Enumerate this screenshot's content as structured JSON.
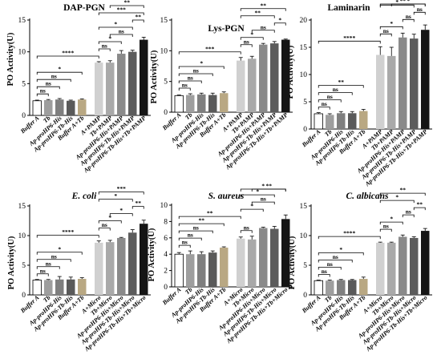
{
  "y_axis_label": "PO Activity(U)",
  "bar_colors": [
    "#ffffff",
    "#9e9e9e",
    "#7f7f7f",
    "#5a5a5a",
    "#b9a883",
    "#d0d0d0",
    "#a9a9a9",
    "#8a8a8a",
    "#5c5c5c",
    "#151515",
    "#b9a883"
  ],
  "chart_data": [
    {
      "type": "bar",
      "title": "DAP-PGN",
      "title_italic": false,
      "ylabel": "PO Activity(U)",
      "ylim": [
        0,
        15
      ],
      "yticks": [
        0,
        5,
        10,
        15
      ],
      "categories": [
        "Buffer A",
        "Tb",
        "Ap-proHP6-His",
        "Ap-proHP6-Tb-His",
        "Buffer A+Tb",
        "A+PAMP",
        "Tb+PAMP",
        "Ap-proHP6-His+PAMP",
        "Ap-proHP6-Tb-His+PAMP",
        "Ap-proHP6-Tb-His+Tb+PAMP"
      ],
      "values": [
        2.3,
        2.4,
        2.5,
        2.3,
        2.5,
        8.3,
        8.3,
        9.7,
        10.0,
        11.9
      ],
      "errors": [
        0.1,
        0.1,
        0.15,
        0.1,
        0.1,
        0.15,
        0.3,
        0.5,
        0.25,
        0.4
      ],
      "brackets": [
        {
          "i": 0,
          "j": 1,
          "label": "ns"
        },
        {
          "i": 0,
          "j": 2,
          "label": "ns"
        },
        {
          "i": 0,
          "j": 3,
          "label": "ns"
        },
        {
          "i": 0,
          "j": 4,
          "label": "*"
        },
        {
          "i": 0,
          "j": 5,
          "label": "****"
        },
        {
          "i": 5,
          "j": 6,
          "label": "ns"
        },
        {
          "i": 5,
          "j": 7,
          "label": "*"
        },
        {
          "i": 6,
          "j": 8,
          "label": "ns"
        },
        {
          "i": 5,
          "j": 8,
          "label": "*"
        },
        {
          "i": 8,
          "j": 9,
          "label": "**"
        },
        {
          "i": 5,
          "j": 9,
          "label": "***"
        },
        {
          "i": 6,
          "j": 9,
          "label": "**"
        }
      ]
    },
    {
      "type": "bar",
      "title": "Lys-PGN",
      "title_italic": false,
      "ylabel": "PO Activity(U)",
      "ylim": [
        0,
        15
      ],
      "yticks": [
        0,
        5,
        10,
        15
      ],
      "categories": [
        "Buffer A",
        "Tb",
        "Ap-proHP6-His",
        "Ap-proHP6-Tb-His",
        "Buffer A+Tb",
        "A+PAMP",
        "Tb+PAMP",
        "Ap-proHP6-His+PAMP",
        "Ap-proHP6-Tb-His+PAMP",
        "Ap-proHP6-Tb-His+Tb+PAMP"
      ],
      "values": [
        2.7,
        2.8,
        2.9,
        2.8,
        3.1,
        8.4,
        8.7,
        11.0,
        11.2,
        11.8
      ],
      "errors": [
        0.1,
        0.2,
        0.2,
        0.3,
        0.2,
        0.5,
        0.4,
        0.2,
        0.3,
        0.1
      ],
      "brackets": [
        {
          "i": 0,
          "j": 1,
          "label": "ns"
        },
        {
          "i": 0,
          "j": 2,
          "label": "ns"
        },
        {
          "i": 0,
          "j": 3,
          "label": "ns"
        },
        {
          "i": 0,
          "j": 4,
          "label": "*"
        },
        {
          "i": 0,
          "j": 5,
          "label": "***"
        },
        {
          "i": 5,
          "j": 6,
          "label": "ns"
        },
        {
          "i": 5,
          "j": 7,
          "label": "*"
        },
        {
          "i": 6,
          "j": 8,
          "label": "ns"
        },
        {
          "i": 8,
          "j": 9,
          "label": "*"
        },
        {
          "i": 5,
          "j": 8,
          "label": "**"
        },
        {
          "i": 5,
          "j": 9,
          "label": "**"
        }
      ]
    },
    {
      "type": "bar",
      "title": "Laminarin",
      "title_italic": false,
      "ylabel": "PO Activity(U)",
      "ylim": [
        0,
        20
      ],
      "yticks": [
        0,
        5,
        10,
        15,
        20
      ],
      "categories": [
        "Buffer A",
        "Tb",
        "Ap-proHP6-His",
        "Ap-proHP6-Tb-His",
        "Buffer A+Tb",
        "A+PAMP",
        "Tb+PAMP",
        "Ap-proHP6-His+PAMP",
        "Ap-proHP6-Tb-His+PAMP",
        "Ap-proHP6-Tb-His+Tb+PAMP"
      ],
      "values": [
        2.8,
        2.6,
        2.9,
        2.9,
        3.3,
        13.6,
        13.4,
        16.8,
        16.6,
        18.2
      ],
      "errors": [
        0.2,
        0.2,
        0.3,
        0.3,
        0.3,
        1.5,
        1.6,
        0.8,
        0.8,
        0.9
      ],
      "brackets": [
        {
          "i": 0,
          "j": 1,
          "label": "ns"
        },
        {
          "i": 0,
          "j": 2,
          "label": "ns"
        },
        {
          "i": 0,
          "j": 3,
          "label": "ns"
        },
        {
          "i": 0,
          "j": 4,
          "label": "**"
        },
        {
          "i": 0,
          "j": 5,
          "label": "****"
        },
        {
          "i": 5,
          "j": 6,
          "label": "ns"
        },
        {
          "i": 5,
          "j": 7,
          "label": "*"
        },
        {
          "i": 7,
          "j": 8,
          "label": "ns"
        },
        {
          "i": 8,
          "j": 9,
          "label": "ns"
        },
        {
          "i": 5,
          "j": 8,
          "label": "*"
        },
        {
          "i": 6,
          "j": 9,
          "label": "*"
        },
        {
          "i": 5,
          "j": 9,
          "label": "**"
        }
      ]
    },
    {
      "type": "bar",
      "title": "E. coli",
      "title_italic": true,
      "ylabel": "PO Activity(U)",
      "ylim": [
        0,
        15
      ],
      "yticks": [
        0,
        5,
        10,
        15
      ],
      "categories": [
        "Buffer A",
        "Tb",
        "Ap-proHP6-His",
        "Ap-proHP6-Tb-His",
        "Buffer A+Tb",
        "A+Micro",
        "Tb+Micro",
        "Ap-proHP6-His+Micro",
        "Ap-proHP6-Tb-His+Micro",
        "Ap-proHP6-Tb-His+Tb+Micro"
      ],
      "values": [
        2.5,
        2.5,
        2.6,
        2.6,
        2.7,
        8.8,
        8.9,
        9.6,
        10.5,
        12.0
      ],
      "errors": [
        0.1,
        0.1,
        0.5,
        0.4,
        0.2,
        0.3,
        0.3,
        0.1,
        0.5,
        0.6
      ],
      "brackets": [
        {
          "i": 0,
          "j": 1,
          "label": "ns"
        },
        {
          "i": 0,
          "j": 2,
          "label": "ns"
        },
        {
          "i": 0,
          "j": 3,
          "label": "ns"
        },
        {
          "i": 0,
          "j": 4,
          "label": "*"
        },
        {
          "i": 0,
          "j": 5,
          "label": "****"
        },
        {
          "i": 5,
          "j": 6,
          "label": "ns"
        },
        {
          "i": 5,
          "j": 7,
          "label": "*"
        },
        {
          "i": 6,
          "j": 8,
          "label": "*"
        },
        {
          "i": 8,
          "j": 9,
          "label": "**"
        },
        {
          "i": 5,
          "j": 8,
          "label": "*"
        },
        {
          "i": 5,
          "j": 9,
          "label": "***"
        }
      ]
    },
    {
      "type": "bar",
      "title": "S. aureus",
      "title_italic": true,
      "ylabel": "PO Activity(U)",
      "ylim": [
        0,
        10
      ],
      "yticks": [
        0,
        2,
        4,
        6,
        8,
        10
      ],
      "categories": [
        "Buffer A",
        "Tb",
        "Ap-proHP6-His",
        "Ap-proHP6-Tb-His",
        "Buffer A+Tb",
        "A+Micro",
        "Tb+Micro",
        "Ap-proHP6-His+Micro",
        "Ap-proHP6-Tb-His+Micro",
        "Ap-proHP6-Tb-His+Tb+Micro"
      ],
      "values": [
        4.0,
        4.0,
        4.0,
        4.2,
        4.8,
        5.9,
        5.8,
        7.2,
        7.1,
        8.3
      ],
      "errors": [
        0.2,
        0.4,
        0.3,
        0.2,
        0.1,
        0.2,
        0.4,
        0.1,
        0.3,
        0.5
      ],
      "brackets": [
        {
          "i": 0,
          "j": 1,
          "label": "ns"
        },
        {
          "i": 0,
          "j": 2,
          "label": "ns"
        },
        {
          "i": 0,
          "j": 3,
          "label": "ns"
        },
        {
          "i": 0,
          "j": 4,
          "label": "**"
        },
        {
          "i": 5,
          "j": 6,
          "label": "ns"
        },
        {
          "i": 0,
          "j": 5,
          "label": "**"
        },
        {
          "i": 5,
          "j": 7,
          "label": "*"
        },
        {
          "i": 6,
          "j": 8,
          "label": "ns"
        },
        {
          "i": 5,
          "j": 8,
          "label": "*"
        },
        {
          "i": 5,
          "j": 9,
          "label": "*"
        },
        {
          "i": 6,
          "j": 9,
          "label": "**"
        }
      ]
    },
    {
      "type": "bar",
      "title": "C. albicans",
      "title_italic": true,
      "ylabel": "PO Activity(U)",
      "ylim": [
        0,
        15
      ],
      "yticks": [
        0,
        5,
        10,
        15
      ],
      "categories": [
        "Buffer A",
        "Tb",
        "Ap-proHP6-His",
        "Ap-proHP6-Tb-His",
        "Buffer A+Tb",
        "A+Micro",
        "Tb+Micro",
        "Ap-proHP6-His+Micro",
        "Ap-proHP6-Tb-His+Micro",
        "Ap-proHP6-Tb-His+Tb+Micro"
      ],
      "values": [
        2.4,
        2.4,
        2.5,
        2.5,
        2.7,
        8.8,
        8.8,
        9.8,
        9.6,
        10.8
      ],
      "errors": [
        0.1,
        0.1,
        0.1,
        0.1,
        0.3,
        0.1,
        0.1,
        0.3,
        0.2,
        0.4
      ],
      "brackets": [
        {
          "i": 0,
          "j": 1,
          "label": "ns"
        },
        {
          "i": 0,
          "j": 2,
          "label": "ns"
        },
        {
          "i": 0,
          "j": 3,
          "label": "ns"
        },
        {
          "i": 0,
          "j": 4,
          "label": "*"
        },
        {
          "i": 0,
          "j": 5,
          "label": "****"
        },
        {
          "i": 5,
          "j": 6,
          "label": "ns"
        },
        {
          "i": 5,
          "j": 7,
          "label": "*"
        },
        {
          "i": 7,
          "j": 8,
          "label": "ns"
        },
        {
          "i": 8,
          "j": 9,
          "label": "**"
        },
        {
          "i": 5,
          "j": 8,
          "label": "*"
        },
        {
          "i": 5,
          "j": 9,
          "label": "**"
        }
      ]
    }
  ]
}
